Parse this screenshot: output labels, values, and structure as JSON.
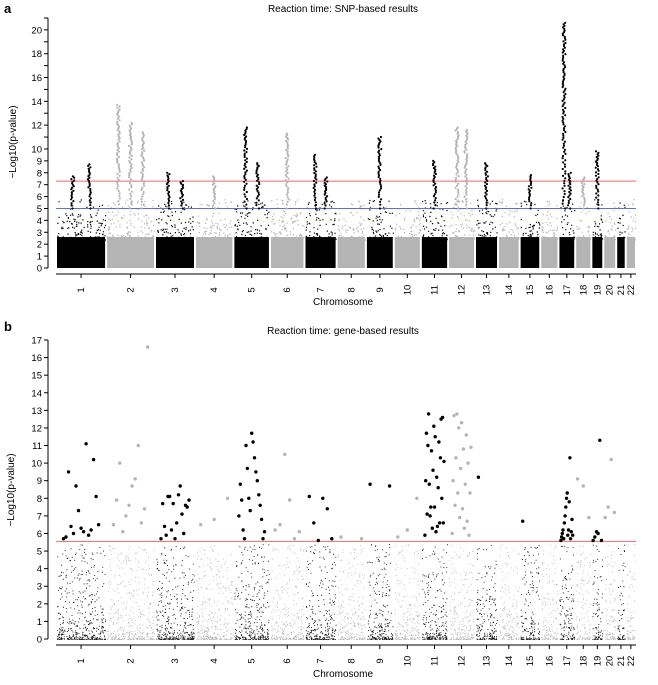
{
  "chart_data": [
    {
      "type": "scatter",
      "panel_label": "a",
      "title": "Reaction time: SNP-based results",
      "xlabel": "Chromosome",
      "ylabel": "−Log10(p-value)",
      "ylim": [
        0,
        21
      ],
      "yticks": [
        0,
        1,
        2,
        3,
        4,
        5,
        6,
        7,
        8,
        9,
        10,
        11,
        12,
        13,
        14,
        15,
        16,
        17,
        18,
        19,
        20,
        21
      ],
      "ytick_labels": [
        "0",
        "1",
        "2",
        "3",
        "4",
        "5",
        "6",
        "7",
        "8",
        "9",
        "10",
        "",
        "12",
        "",
        "14",
        "",
        "16",
        "",
        "18",
        "",
        "20",
        ""
      ],
      "chromosomes": [
        "1",
        "2",
        "3",
        "4",
        "5",
        "6",
        "7",
        "8",
        "9",
        "10",
        "11",
        "12",
        "13",
        "14",
        "15",
        "16",
        "17",
        "18",
        "19",
        "20",
        "21",
        "22"
      ],
      "reference_lines": [
        {
          "name": "genome-wide significance",
          "value": 7.3,
          "color": "#e66b6b"
        },
        {
          "name": "suggestive",
          "value": 5.0,
          "color": "#5f6fd6"
        }
      ],
      "peaks": [
        {
          "chromosome": "1",
          "max": 7.7
        },
        {
          "chromosome": "1",
          "max": 8.7
        },
        {
          "chromosome": "2",
          "max": 13.7
        },
        {
          "chromosome": "2",
          "max": 12.2
        },
        {
          "chromosome": "2",
          "max": 11.4
        },
        {
          "chromosome": "3",
          "max": 8.0
        },
        {
          "chromosome": "3",
          "max": 7.3
        },
        {
          "chromosome": "4",
          "max": 7.7
        },
        {
          "chromosome": "5",
          "max": 11.8
        },
        {
          "chromosome": "5",
          "max": 8.8
        },
        {
          "chromosome": "6",
          "max": 11.3
        },
        {
          "chromosome": "7",
          "max": 9.5
        },
        {
          "chromosome": "7",
          "max": 7.6
        },
        {
          "chromosome": "9",
          "max": 11.0
        },
        {
          "chromosome": "11",
          "max": 9.0
        },
        {
          "chromosome": "12",
          "max": 11.8
        },
        {
          "chromosome": "12",
          "max": 11.6
        },
        {
          "chromosome": "13",
          "max": 8.8
        },
        {
          "chromosome": "15",
          "max": 7.8
        },
        {
          "chromosome": "17",
          "max": 20.6
        },
        {
          "chromosome": "17",
          "max": 8.0
        },
        {
          "chromosome": "18",
          "max": 7.6
        },
        {
          "chromosome": "19",
          "max": 9.8
        }
      ],
      "colors": {
        "odd": "#000000",
        "even": "#b4b4b4"
      }
    },
    {
      "type": "scatter",
      "panel_label": "b",
      "title": "Reaction time: gene-based results",
      "xlabel": "Chromosome",
      "ylabel": "−Log10(p-value)",
      "ylim": [
        0,
        17
      ],
      "yticks": [
        0,
        1,
        2,
        3,
        4,
        5,
        6,
        7,
        8,
        9,
        10,
        11,
        12,
        13,
        14,
        15,
        16,
        17
      ],
      "ytick_labels": [
        "0",
        "1",
        "2",
        "3",
        "4",
        "5",
        "6",
        "7",
        "8",
        "9",
        "10",
        "11",
        "12",
        "13",
        "14",
        "15",
        "16",
        "17"
      ],
      "chromosomes": [
        "1",
        "2",
        "3",
        "4",
        "5",
        "6",
        "7",
        "8",
        "9",
        "10",
        "11",
        "12",
        "13",
        "14",
        "15",
        "16",
        "17",
        "18",
        "19",
        "20",
        "21",
        "22"
      ],
      "reference_lines": [
        {
          "name": "genome-wide significance",
          "value": 5.55,
          "color": "#e66b6b"
        }
      ],
      "significant_genes": [
        {
          "chromosome": "1",
          "values": [
            5.7,
            6.3,
            6.5,
            7.3,
            8.1,
            8.7,
            10.2,
            6.0,
            6.2,
            6.4,
            5.9,
            9.5,
            11.1,
            5.8,
            6.1
          ]
        },
        {
          "chromosome": "2",
          "values": [
            6.5,
            7.9,
            10.0,
            6.1,
            7.0,
            7.6,
            8.7,
            9.1,
            11.0,
            6.6,
            7.4,
            16.6
          ]
        },
        {
          "chromosome": "3",
          "values": [
            5.7,
            5.9,
            6.2,
            6.6,
            7.1,
            7.5,
            7.7,
            8.1,
            7.7,
            8.2,
            6.0,
            7.9,
            6.4,
            8.1,
            5.7,
            8.7,
            7.6
          ]
        },
        {
          "chromosome": "4",
          "values": [
            6.5,
            6.8,
            8.0
          ]
        },
        {
          "chromosome": "5",
          "values": [
            7.0,
            6.1,
            5.7,
            6.8,
            7.6,
            8.2,
            9.0,
            9.5,
            10.3,
            11.2,
            11.7,
            7.3,
            8.0,
            9.7,
            11.0,
            5.7,
            6.2,
            7.9,
            8.8
          ]
        },
        {
          "chromosome": "6",
          "values": [
            6.2,
            6.5,
            10.5,
            7.9,
            5.7,
            6.1
          ]
        },
        {
          "chromosome": "7",
          "values": [
            8.1,
            6.6,
            5.6,
            8.0,
            7.4,
            5.7
          ]
        },
        {
          "chromosome": "8",
          "values": [
            5.8,
            5.7
          ]
        },
        {
          "chromosome": "9",
          "values": [
            8.8,
            8.7
          ]
        },
        {
          "chromosome": "10",
          "values": [
            5.8,
            6.2,
            8.0
          ]
        },
        {
          "chromosome": "11",
          "values": [
            5.9,
            6.3,
            6.6,
            7.1,
            7.5,
            8.0,
            8.8,
            9.2,
            10.1,
            10.7,
            11.2,
            11.7,
            12.1,
            12.5,
            12.8,
            6.1,
            6.6,
            7.5,
            8.6,
            9.0,
            9.6,
            10.3,
            11.0,
            11.5,
            12.6,
            7.0,
            6.4
          ]
        },
        {
          "chromosome": "12",
          "values": [
            6.0,
            6.7,
            7.4,
            8.3,
            9.0,
            10.0,
            10.8,
            12.0,
            12.7,
            5.9,
            6.3,
            6.9,
            7.6,
            8.3,
            8.8,
            9.7,
            10.3,
            10.9,
            11.6,
            12.3,
            12.8
          ]
        },
        {
          "chromosome": "13",
          "values": [
            9.2
          ]
        },
        {
          "chromosome": "15",
          "values": [
            6.7
          ]
        },
        {
          "chromosome": "17",
          "values": [
            5.6,
            5.8,
            6.0,
            6.2,
            5.7,
            6.6,
            7.0,
            7.5,
            8.0,
            8.3,
            5.9,
            6.2,
            7.8,
            10.3,
            5.7,
            6.1,
            6.8,
            5.9
          ]
        },
        {
          "chromosome": "18",
          "values": [
            9.1,
            8.7,
            6.9
          ]
        },
        {
          "chromosome": "19",
          "values": [
            5.6,
            5.8,
            6.1,
            6.0,
            11.3,
            5.6
          ]
        },
        {
          "chromosome": "20",
          "values": [
            6.9,
            7.5,
            10.2,
            7.2
          ]
        }
      ],
      "colors": {
        "odd": "#000000",
        "even": "#b4b4b4"
      }
    }
  ]
}
